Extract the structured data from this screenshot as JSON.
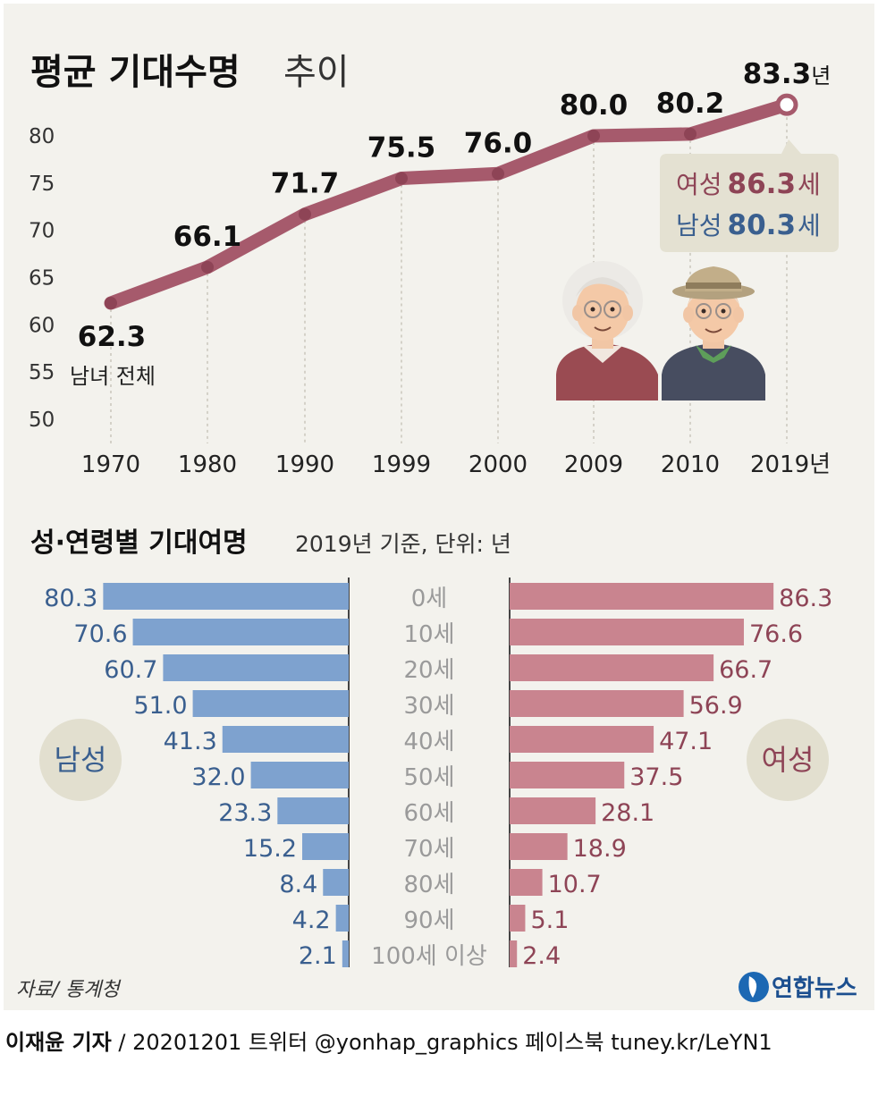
{
  "title": {
    "bold": "평균 기대수명",
    "light": "추이"
  },
  "chart_data": [
    {
      "type": "line",
      "x": [
        "1970",
        "1980",
        "1990",
        "1999",
        "2000",
        "2009",
        "2010",
        "2019년"
      ],
      "values": [
        62.3,
        66.1,
        71.7,
        75.5,
        76.0,
        80.0,
        80.2,
        83.3
      ],
      "value_labels": [
        "62.3",
        "66.1",
        "71.7",
        "75.5",
        "76.0",
        "80.0",
        "80.2",
        "83.3"
      ],
      "last_value_suffix": "년",
      "y_ticks": [
        "80",
        "75",
        "70",
        "65",
        "60",
        "55",
        "50"
      ],
      "ylim": [
        50,
        80
      ],
      "series_label": "남녀 전체",
      "color": "#a65a6c",
      "callout": {
        "female_label": "여성",
        "female_value": "86.3",
        "female_unit": "세",
        "male_label": "남성",
        "male_value": "80.3",
        "male_unit": "세"
      }
    },
    {
      "type": "bar",
      "title": "성·연령별 기대여명",
      "subtitle": "2019년 기준, 단위: 년",
      "categories": [
        "0세",
        "10세",
        "20세",
        "30세",
        "40세",
        "50세",
        "60세",
        "70세",
        "80세",
        "90세",
        "100세 이상"
      ],
      "series": [
        {
          "name": "남성",
          "values": [
            80.3,
            70.6,
            60.7,
            51.0,
            41.3,
            32.0,
            23.3,
            15.2,
            8.4,
            4.2,
            2.1
          ],
          "labels": [
            "80.3",
            "70.6",
            "60.7",
            "51.0",
            "41.3",
            "32.0",
            "23.3",
            "15.2",
            "8.4",
            "4.2",
            "2.1"
          ],
          "color": "#7ea2cf",
          "text_color": "#3a5f8f"
        },
        {
          "name": "여성",
          "values": [
            86.3,
            76.6,
            66.7,
            56.9,
            47.1,
            37.5,
            28.1,
            18.9,
            10.7,
            5.1,
            2.4
          ],
          "labels": [
            "86.3",
            "76.6",
            "66.7",
            "56.9",
            "47.1",
            "37.5",
            "28.1",
            "18.9",
            "10.7",
            "5.1",
            "2.4"
          ],
          "color": "#c9848f",
          "text_color": "#8e4456"
        }
      ]
    }
  ],
  "source": "자료/ 통계청",
  "logo_text": "연합뉴스",
  "footer": {
    "reporter": "이재윤 기자",
    "rest": "/ 20201201   트위터 @yonhap_graphics  페이스북 tuney.kr/LeYN1"
  },
  "colors": {
    "background": "#f3f2ed",
    "callout_bg": "#e4e1d2",
    "badge_bg": "#e2dfcf",
    "divider": "#444444"
  }
}
